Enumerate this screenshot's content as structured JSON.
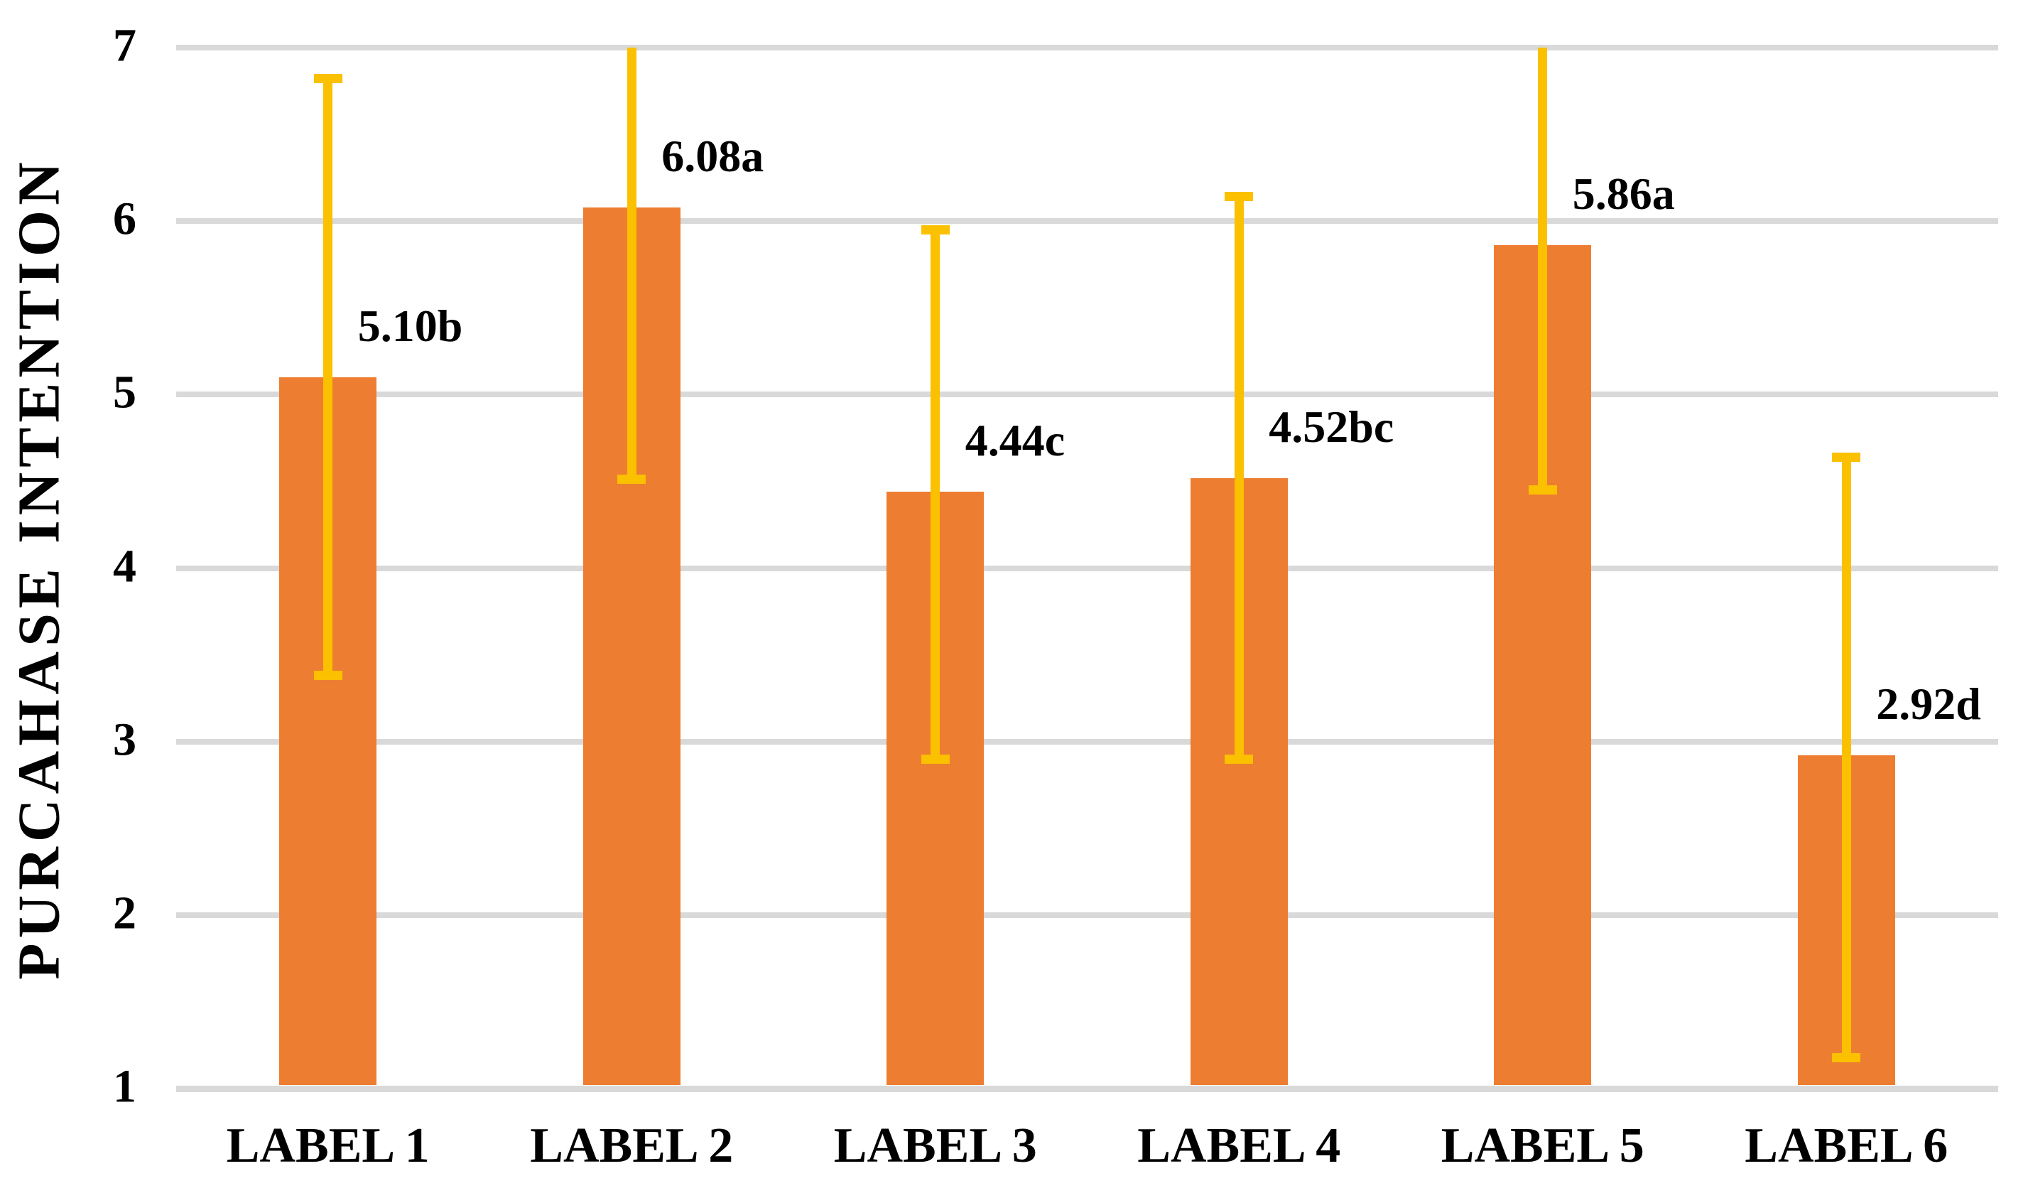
{
  "chart_data": {
    "type": "bar",
    "title": "",
    "xlabel": "",
    "ylabel": "PURCAHASE INTENTION",
    "ylim": [
      1,
      7
    ],
    "yticks": [
      7,
      6,
      5,
      4,
      3,
      2,
      1
    ],
    "grid": true,
    "legend_position": "none",
    "categories": [
      "LABEL 1",
      "LABEL 2",
      "LABEL 3",
      "LABEL 4",
      "LABEL 5",
      "LABEL 6"
    ],
    "values": [
      5.1,
      6.08,
      4.44,
      4.52,
      5.86,
      2.92
    ],
    "data_labels": [
      "5.10b",
      "6.08a",
      "4.44c",
      "4.52bc",
      "5.86a",
      "2.92d"
    ],
    "error_bars": [
      {
        "low": 3.38,
        "high": 6.82,
        "high_capped": true
      },
      {
        "low": 4.51,
        "high": 7.0,
        "high_capped": false
      },
      {
        "low": 2.9,
        "high": 5.95,
        "high_capped": true
      },
      {
        "low": 2.9,
        "high": 6.14,
        "high_capped": true
      },
      {
        "low": 4.45,
        "high": 7.0,
        "high_capped": false
      },
      {
        "low": 1.18,
        "high": 4.64,
        "high_capped": true
      }
    ],
    "colors": {
      "bar": "#ED7D31",
      "error_bar": "#FBC000",
      "gridline": "#D9D9D9",
      "text": "#000000",
      "background": "#FFFFFF"
    }
  }
}
